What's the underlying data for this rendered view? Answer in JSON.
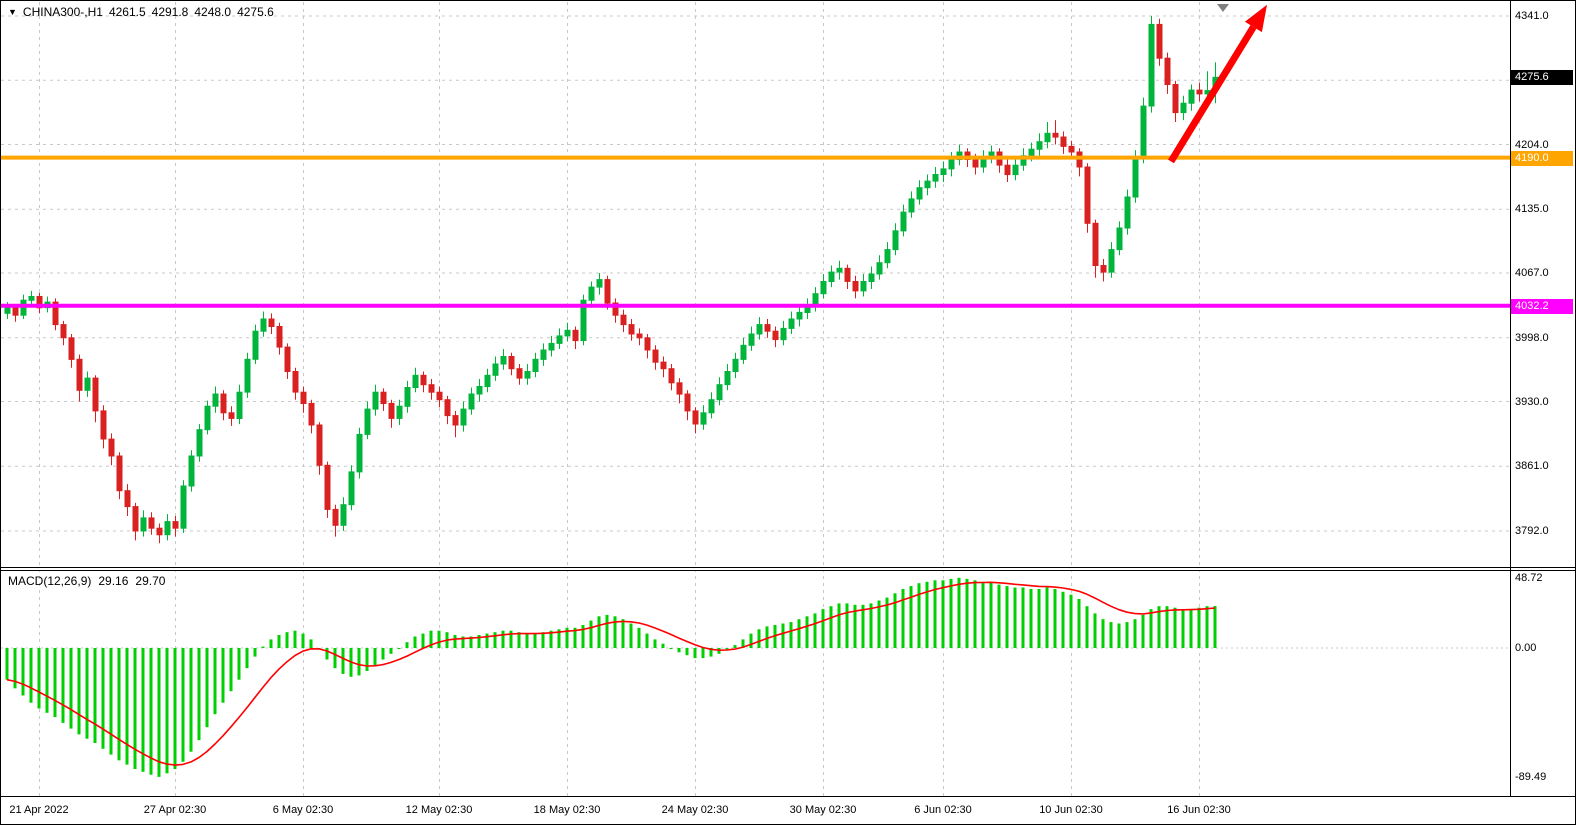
{
  "window": {
    "dropdown_icon": "▼",
    "title": "CHINA300-,H1",
    "ohlc": {
      "open": "4261.5",
      "high": "4291.8",
      "low": "4248.0",
      "close": "4275.6"
    }
  },
  "colors": {
    "background": "#ffffff",
    "grid": "#c9c9c9",
    "bull": "#00b43c",
    "bear": "#d92121",
    "axis_text": "#000000"
  },
  "chart_data": {
    "type": "candlestick",
    "symbol": "CHINA300-",
    "timeframe": "H1",
    "title": "CHINA300-,H1 4261.5 4291.8 4248.0 4275.6",
    "ylim": [
      3755,
      4357
    ],
    "grid": true,
    "legend_position": "none",
    "price_axis": {
      "ticks": [
        {
          "price": 4341.0,
          "label": "4341.0"
        },
        {
          "price": 4272.5,
          "label": ""
        },
        {
          "price": 4204.0,
          "label": "4204.0"
        },
        {
          "price": 4135.0,
          "label": "4135.0"
        },
        {
          "price": 4067.0,
          "label": "4067.0"
        },
        {
          "price": 3998.0,
          "label": "3998.0"
        },
        {
          "price": 3930.0,
          "label": "3930.0"
        },
        {
          "price": 3861.0,
          "label": "3861.0"
        },
        {
          "price": 3792.0,
          "label": "3792.0"
        }
      ]
    },
    "current_price_badge": {
      "label": "4275.6",
      "price": 4275.6,
      "bg": "#000000",
      "fg": "#ffffff"
    },
    "hlines": [
      {
        "price": 4190.0,
        "label": "4190.0",
        "color": "#ffa500"
      },
      {
        "price": 4032.2,
        "label": "4032.2",
        "color": "#ff00ff"
      }
    ],
    "time_labels": [
      {
        "index": 4,
        "label": "21 Apr 2022"
      },
      {
        "index": 21,
        "label": "27 Apr 02:30"
      },
      {
        "index": 37,
        "label": "6 May 02:30"
      },
      {
        "index": 54,
        "label": "12 May 02:30"
      },
      {
        "index": 70,
        "label": "18 May 02:30"
      },
      {
        "index": 86,
        "label": "24 May 02:30"
      },
      {
        "index": 102,
        "label": "30 May 02:30"
      },
      {
        "index": 117,
        "label": "6 Jun 02:30"
      },
      {
        "index": 133,
        "label": "10 Jun 02:30"
      },
      {
        "index": 149,
        "label": "16 Jun 02:30"
      }
    ],
    "arrow": {
      "from": {
        "index": 145.5,
        "price": 4186
      },
      "to": {
        "index": 157.5,
        "price": 4353
      },
      "color": "#ff0000"
    },
    "shift_marker_index": 152,
    "candles": [
      [
        4024,
        4036,
        4018,
        4030
      ],
      [
        4030,
        4034,
        4015,
        4022
      ],
      [
        4022,
        4044,
        4018,
        4038
      ],
      [
        4038,
        4048,
        4033,
        4042
      ],
      [
        4042,
        4046,
        4024,
        4030
      ],
      [
        4030,
        4042,
        4025,
        4036
      ],
      [
        4036,
        4040,
        4006,
        4012
      ],
      [
        4012,
        4016,
        3990,
        3998
      ],
      [
        3998,
        4002,
        3966,
        3975
      ],
      [
        3975,
        3980,
        3930,
        3942
      ],
      [
        3942,
        3962,
        3935,
        3955
      ],
      [
        3955,
        3958,
        3908,
        3920
      ],
      [
        3920,
        3926,
        3880,
        3890
      ],
      [
        3890,
        3896,
        3862,
        3872
      ],
      [
        3872,
        3876,
        3826,
        3835
      ],
      [
        3835,
        3842,
        3808,
        3818
      ],
      [
        3818,
        3822,
        3782,
        3792
      ],
      [
        3792,
        3814,
        3786,
        3806
      ],
      [
        3806,
        3812,
        3788,
        3795
      ],
      [
        3795,
        3800,
        3779,
        3788
      ],
      [
        3788,
        3810,
        3782,
        3802
      ],
      [
        3802,
        3808,
        3786,
        3795
      ],
      [
        3795,
        3846,
        3790,
        3840
      ],
      [
        3840,
        3878,
        3834,
        3872
      ],
      [
        3872,
        3906,
        3866,
        3900
      ],
      [
        3900,
        3931,
        3895,
        3925
      ],
      [
        3925,
        3946,
        3918,
        3938
      ],
      [
        3938,
        3942,
        3910,
        3918
      ],
      [
        3918,
        3925,
        3904,
        3912
      ],
      [
        3912,
        3948,
        3906,
        3940
      ],
      [
        3940,
        3982,
        3934,
        3975
      ],
      [
        3975,
        4012,
        3970,
        4005
      ],
      [
        4005,
        4026,
        3999,
        4018
      ],
      [
        4018,
        4024,
        4002,
        4010
      ],
      [
        4010,
        4014,
        3980,
        3988
      ],
      [
        3988,
        3992,
        3954,
        3962
      ],
      [
        3962,
        3966,
        3932,
        3940
      ],
      [
        3940,
        3946,
        3918,
        3928
      ],
      [
        3928,
        3932,
        3896,
        3905
      ],
      [
        3905,
        3908,
        3852,
        3862
      ],
      [
        3862,
        3866,
        3806,
        3815
      ],
      [
        3815,
        3820,
        3786,
        3798
      ],
      [
        3798,
        3828,
        3792,
        3820
      ],
      [
        3820,
        3862,
        3814,
        3855
      ],
      [
        3855,
        3902,
        3848,
        3895
      ],
      [
        3895,
        3930,
        3890,
        3922
      ],
      [
        3922,
        3948,
        3915,
        3940
      ],
      [
        3940,
        3944,
        3920,
        3928
      ],
      [
        3928,
        3932,
        3902,
        3912
      ],
      [
        3912,
        3932,
        3905,
        3925
      ],
      [
        3925,
        3952,
        3918,
        3945
      ],
      [
        3945,
        3966,
        3940,
        3958
      ],
      [
        3958,
        3962,
        3940,
        3948
      ],
      [
        3948,
        3954,
        3932,
        3940
      ],
      [
        3940,
        3946,
        3924,
        3932
      ],
      [
        3932,
        3936,
        3906,
        3915
      ],
      [
        3915,
        3920,
        3892,
        3905
      ],
      [
        3905,
        3930,
        3898,
        3922
      ],
      [
        3922,
        3945,
        3916,
        3938
      ],
      [
        3938,
        3954,
        3930,
        3946
      ],
      [
        3946,
        3965,
        3940,
        3958
      ],
      [
        3958,
        3978,
        3952,
        3970
      ],
      [
        3970,
        3986,
        3964,
        3978
      ],
      [
        3978,
        3982,
        3958,
        3965
      ],
      [
        3965,
        3970,
        3948,
        3955
      ],
      [
        3955,
        3970,
        3948,
        3962
      ],
      [
        3962,
        3982,
        3956,
        3975
      ],
      [
        3975,
        3992,
        3968,
        3985
      ],
      [
        3985,
        4000,
        3978,
        3992
      ],
      [
        3992,
        4008,
        3986,
        4000
      ],
      [
        4000,
        4014,
        3994,
        4006
      ],
      [
        4006,
        4010,
        3986,
        3995
      ],
      [
        3995,
        4044,
        3990,
        4038
      ],
      [
        4038,
        4058,
        4030,
        4052
      ],
      [
        4052,
        4067,
        4044,
        4060
      ],
      [
        4060,
        4064,
        4028,
        4035
      ],
      [
        4035,
        4040,
        4014,
        4022
      ],
      [
        4022,
        4028,
        4004,
        4012
      ],
      [
        4012,
        4018,
        3995,
        4002
      ],
      [
        4002,
        4008,
        3990,
        3998
      ],
      [
        3998,
        4002,
        3976,
        3985
      ],
      [
        3985,
        3990,
        3964,
        3972
      ],
      [
        3972,
        3978,
        3956,
        3965
      ],
      [
        3965,
        3970,
        3942,
        3950
      ],
      [
        3950,
        3955,
        3928,
        3938
      ],
      [
        3938,
        3942,
        3910,
        3920
      ],
      [
        3920,
        3924,
        3896,
        3906
      ],
      [
        3906,
        3926,
        3900,
        3918
      ],
      [
        3918,
        3940,
        3912,
        3932
      ],
      [
        3932,
        3956,
        3926,
        3948
      ],
      [
        3948,
        3970,
        3942,
        3962
      ],
      [
        3962,
        3982,
        3955,
        3975
      ],
      [
        3975,
        3998,
        3970,
        3990
      ],
      [
        3990,
        4010,
        3984,
        4002
      ],
      [
        4002,
        4020,
        3996,
        4012
      ],
      [
        4012,
        4018,
        3998,
        4005
      ],
      [
        4005,
        4010,
        3988,
        3996
      ],
      [
        3996,
        4016,
        3990,
        4008
      ],
      [
        4008,
        4026,
        4002,
        4018
      ],
      [
        4018,
        4032,
        4010,
        4025
      ],
      [
        4025,
        4040,
        4018,
        4032
      ],
      [
        4032,
        4052,
        4026,
        4045
      ],
      [
        4045,
        4066,
        4040,
        4058
      ],
      [
        4058,
        4075,
        4052,
        4068
      ],
      [
        4068,
        4080,
        4060,
        4072
      ],
      [
        4072,
        4076,
        4050,
        4058
      ],
      [
        4058,
        4064,
        4040,
        4048
      ],
      [
        4048,
        4066,
        4042,
        4058
      ],
      [
        4058,
        4074,
        4050,
        4066
      ],
      [
        4066,
        4086,
        4060,
        4078
      ],
      [
        4078,
        4100,
        4072,
        4092
      ],
      [
        4092,
        4120,
        4086,
        4112
      ],
      [
        4112,
        4140,
        4106,
        4132
      ],
      [
        4132,
        4154,
        4126,
        4146
      ],
      [
        4146,
        4166,
        4140,
        4158
      ],
      [
        4158,
        4172,
        4150,
        4165
      ],
      [
        4165,
        4180,
        4158,
        4172
      ],
      [
        4172,
        4186,
        4164,
        4178
      ],
      [
        4178,
        4196,
        4170,
        4188
      ],
      [
        4188,
        4204,
        4182,
        4196
      ],
      [
        4196,
        4200,
        4180,
        4188
      ],
      [
        4188,
        4194,
        4172,
        4180
      ],
      [
        4180,
        4198,
        4174,
        4190
      ],
      [
        4190,
        4203,
        4184,
        4196
      ],
      [
        4196,
        4200,
        4174,
        4182
      ],
      [
        4182,
        4188,
        4164,
        4172
      ],
      [
        4172,
        4190,
        4166,
        4182
      ],
      [
        4182,
        4200,
        4176,
        4192
      ],
      [
        4192,
        4206,
        4186,
        4199
      ],
      [
        4199,
        4216,
        4192,
        4207
      ],
      [
        4207,
        4228,
        4200,
        4216
      ],
      [
        4216,
        4230,
        4204,
        4212
      ],
      [
        4212,
        4218,
        4194,
        4202
      ],
      [
        4202,
        4208,
        4188,
        4196
      ],
      [
        4196,
        4200,
        4170,
        4180
      ],
      [
        4180,
        4184,
        4110,
        4120
      ],
      [
        4120,
        4124,
        4062,
        4075
      ],
      [
        4075,
        4082,
        4058,
        4068
      ],
      [
        4068,
        4100,
        4062,
        4092
      ],
      [
        4092,
        4122,
        4086,
        4115
      ],
      [
        4115,
        4156,
        4108,
        4148
      ],
      [
        4148,
        4198,
        4142,
        4190
      ],
      [
        4190,
        4254,
        4184,
        4245
      ],
      [
        4245,
        4341,
        4238,
        4332
      ],
      [
        4332,
        4338,
        4288,
        4296
      ],
      [
        4296,
        4302,
        4258,
        4268
      ],
      [
        4268,
        4272,
        4228,
        4238
      ],
      [
        4238,
        4256,
        4230,
        4248
      ],
      [
        4248,
        4268,
        4240,
        4262
      ],
      [
        4262,
        4270,
        4250,
        4258
      ],
      [
        4258,
        4282,
        4252,
        4261.5
      ],
      [
        4261.5,
        4291.8,
        4248,
        4275.6
      ]
    ],
    "macd": {
      "label": "MACD(12,26,9)",
      "macd_value": "29.16",
      "signal_value": "29.70",
      "signal_period": 9,
      "histogram_color": "#00cf00",
      "signal_color": "#ff0000",
      "ylim": [
        -103,
        55
      ],
      "axis_ticks": [
        {
          "value": 48.72,
          "label": "48.72",
          "line": false
        },
        {
          "value": 0,
          "label": "0.00",
          "line": true
        },
        {
          "value": -89.49,
          "label": "-89.49",
          "line": false
        }
      ],
      "histogram": [
        -22,
        -28,
        -33,
        -38,
        -42,
        -45,
        -48,
        -52,
        -56,
        -60,
        -63,
        -66,
        -70,
        -74,
        -78,
        -81,
        -84,
        -86,
        -88,
        -89.49,
        -87,
        -84,
        -79,
        -72,
        -64,
        -55,
        -46,
        -38,
        -30,
        -22,
        -14,
        -6,
        1,
        6,
        9,
        11,
        12,
        10,
        6,
        -1,
        -8,
        -14,
        -18,
        -20,
        -19,
        -16,
        -12,
        -8,
        -4,
        0,
        4,
        8,
        10,
        12,
        12,
        11,
        9,
        8,
        8,
        9,
        10,
        11,
        12,
        12,
        11,
        10,
        10,
        11,
        12,
        13,
        14,
        14,
        16,
        19,
        22,
        23,
        22,
        20,
        17,
        14,
        10,
        6,
        3,
        0,
        -3,
        -5,
        -7,
        -7,
        -6,
        -4,
        -1,
        2,
        6,
        10,
        13,
        15,
        16,
        17,
        18,
        20,
        22,
        24,
        27,
        29,
        31,
        31,
        30,
        30,
        31,
        33,
        35,
        38,
        41,
        43,
        45,
        46,
        47,
        47,
        48,
        48.72,
        48,
        47,
        46,
        46,
        44,
        43,
        42,
        42,
        41,
        41,
        42,
        41,
        39,
        37,
        34,
        29,
        24,
        20,
        18,
        17,
        18,
        20,
        23,
        27,
        29,
        29,
        28,
        27,
        27,
        28,
        29,
        29.16
      ]
    }
  }
}
